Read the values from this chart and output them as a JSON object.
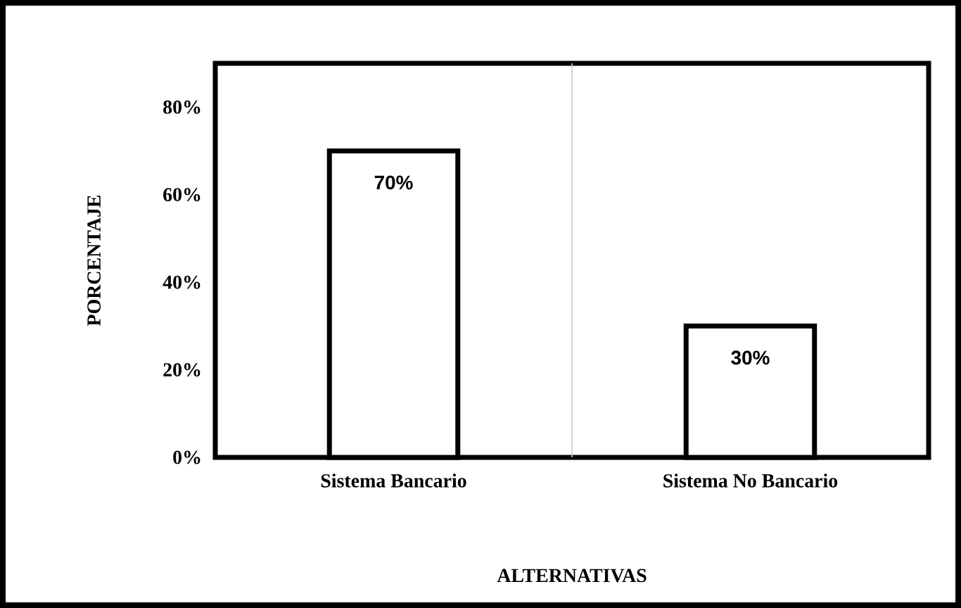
{
  "chart_data": {
    "type": "bar",
    "categories": [
      "Sistema Bancario",
      "Sistema No Bancario"
    ],
    "values": [
      70,
      30
    ],
    "value_labels": [
      "70%",
      "30%"
    ],
    "color": "#ffffff",
    "xlabel": "ALTERNATIVAS",
    "ylabel": "PORCENTAJE",
    "ylim": [
      0,
      90
    ],
    "yticks": [
      {
        "value": 0,
        "label": "0%"
      },
      {
        "value": 20,
        "label": "20%"
      },
      {
        "value": 40,
        "label": "40%"
      },
      {
        "value": 60,
        "label": "60%"
      },
      {
        "value": 80,
        "label": "80%"
      }
    ],
    "grid": "x"
  }
}
